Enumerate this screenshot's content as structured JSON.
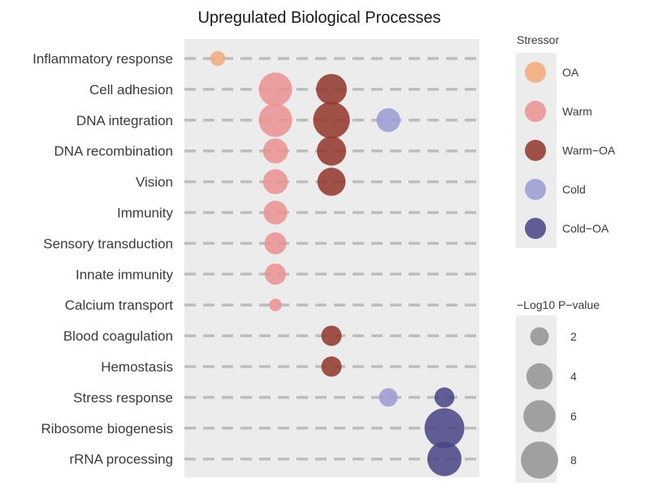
{
  "chart_data": {
    "type": "scatter",
    "title": "Upregulated Biological Processes",
    "xlabel": "",
    "ylabel": "",
    "stressors": [
      "OA",
      "Warm",
      "Warm−OA",
      "Cold",
      "Cold−OA"
    ],
    "categories": [
      "Inflammatory response",
      "Cell adhesion",
      "DNA integration",
      "DNA recombination",
      "Vision",
      "Immunity",
      "Sensory transduction",
      "Innate immunity",
      "Calcium transport",
      "Blood coagulation",
      "Hemostasis",
      "Stress response",
      "Ribosome biogenesis",
      "rRNA processing"
    ],
    "points": [
      {
        "process": "Inflammatory response",
        "stressor": "OA",
        "neg_log10_p": 1.3
      },
      {
        "process": "Cell adhesion",
        "stressor": "Warm",
        "neg_log10_p": 6.5
      },
      {
        "process": "Cell adhesion",
        "stressor": "Warm−OA",
        "neg_log10_p": 5.5
      },
      {
        "process": "DNA integration",
        "stressor": "Warm",
        "neg_log10_p": 6.5
      },
      {
        "process": "DNA integration",
        "stressor": "Warm−OA",
        "neg_log10_p": 7.8
      },
      {
        "process": "DNA integration",
        "stressor": "Cold",
        "neg_log10_p": 3.3
      },
      {
        "process": "DNA recombination",
        "stressor": "Warm",
        "neg_log10_p": 3.6
      },
      {
        "process": "DNA recombination",
        "stressor": "Warm−OA",
        "neg_log10_p": 5.0
      },
      {
        "process": "Vision",
        "stressor": "Warm",
        "neg_log10_p": 3.6
      },
      {
        "process": "Vision",
        "stressor": "Warm−OA",
        "neg_log10_p": 4.6
      },
      {
        "process": "Immunity",
        "stressor": "Warm",
        "neg_log10_p": 3.3
      },
      {
        "process": "Sensory transduction",
        "stressor": "Warm",
        "neg_log10_p": 2.8
      },
      {
        "process": "Innate immunity",
        "stressor": "Warm",
        "neg_log10_p": 2.6
      },
      {
        "process": "Calcium transport",
        "stressor": "Warm",
        "neg_log10_p": 0.9
      },
      {
        "process": "Blood coagulation",
        "stressor": "Warm−OA",
        "neg_log10_p": 2.4
      },
      {
        "process": "Hemostasis",
        "stressor": "Warm−OA",
        "neg_log10_p": 2.4
      },
      {
        "process": "Stress response",
        "stressor": "Cold",
        "neg_log10_p": 2.0
      },
      {
        "process": "Stress response",
        "stressor": "Cold−OA",
        "neg_log10_p": 2.3
      },
      {
        "process": "Ribosome biogenesis",
        "stressor": "Cold−OA",
        "neg_log10_p": 9.2
      },
      {
        "process": "rRNA processing",
        "stressor": "Cold−OA",
        "neg_log10_p": 6.8
      }
    ],
    "colors": {
      "OA": "#f5a97a",
      "Warm": "#ea9190",
      "Warm−OA": "#93362a",
      "Cold": "#9b9bd4",
      "Cold−OA": "#484485",
      "size_legend": "#a19f9f",
      "panel_bg": "#ececec",
      "dash_line": "#bdbdbd"
    },
    "legend_color": {
      "title": "Stressor",
      "entries": [
        "OA",
        "Warm",
        "Warm−OA",
        "Cold",
        "Cold−OA"
      ]
    },
    "legend_size": {
      "title": "−Log10 P−value",
      "breaks": [
        2,
        4,
        6,
        8
      ],
      "labels": [
        "2",
        "4",
        "6",
        "8"
      ]
    },
    "legend_placement": "right",
    "grid": "dashed horizontal lines"
  }
}
